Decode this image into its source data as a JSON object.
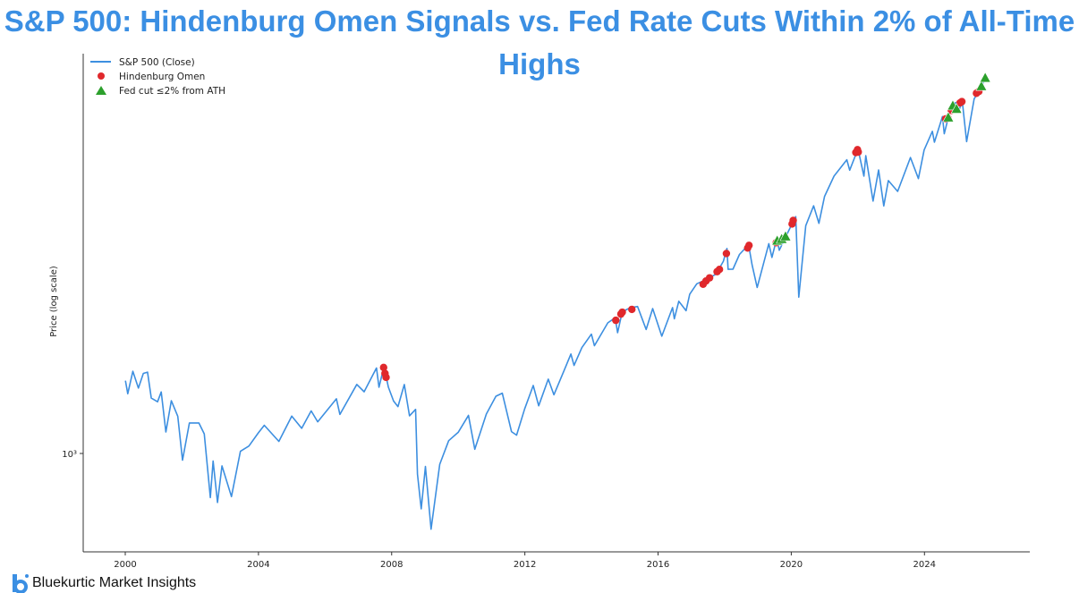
{
  "chart_data": {
    "type": "line",
    "title": "S&P 500: Hindenburg Omen Signals vs. Fed Rate Cuts Within 2% of All-Time Highs",
    "xlabel": "",
    "ylabel": "Price (log scale)",
    "yscale": "log",
    "ylim": [
      603,
      7840
    ],
    "xlim": [
      "1998-09-01",
      "2027-03-01"
    ],
    "xticks": [
      "2000",
      "2004",
      "2008",
      "2012",
      "2016",
      "2020",
      "2024"
    ],
    "yticks": [
      {
        "value": 1000,
        "label": "10³"
      }
    ],
    "grid": false,
    "legend_position": "top-left",
    "colors": {
      "line": "#3d8fe0",
      "omen": "#e0282c",
      "cut": "#2ca02c",
      "title": "#3b8fe3"
    },
    "series": [
      {
        "name": "S&P 500 (Close)",
        "kind": "line",
        "points": [
          [
            "2000-01-03",
            1455
          ],
          [
            "2000-01-28",
            1360
          ],
          [
            "2000-03-24",
            1527
          ],
          [
            "2000-05-24",
            1400
          ],
          [
            "2000-07-17",
            1510
          ],
          [
            "2000-09-01",
            1520
          ],
          [
            "2000-10-13",
            1330
          ],
          [
            "2000-12-20",
            1305
          ],
          [
            "2001-01-30",
            1373
          ],
          [
            "2001-03-22",
            1117
          ],
          [
            "2001-05-21",
            1312
          ],
          [
            "2001-07-31",
            1211
          ],
          [
            "2001-09-21",
            966
          ],
          [
            "2001-12-05",
            1170
          ],
          [
            "2002-03-19",
            1170
          ],
          [
            "2002-05-17",
            1106
          ],
          [
            "2002-07-23",
            797
          ],
          [
            "2002-08-22",
            962
          ],
          [
            "2002-10-09",
            777
          ],
          [
            "2002-11-27",
            938
          ],
          [
            "2003-03-11",
            801
          ],
          [
            "2003-06-17",
            1011
          ],
          [
            "2003-09-18",
            1039
          ],
          [
            "2003-12-31",
            1112
          ],
          [
            "2004-03-05",
            1156
          ],
          [
            "2004-08-12",
            1064
          ],
          [
            "2004-12-31",
            1212
          ],
          [
            "2005-04-20",
            1138
          ],
          [
            "2005-08-02",
            1245
          ],
          [
            "2005-10-13",
            1177
          ],
          [
            "2006-05-05",
            1325
          ],
          [
            "2006-06-13",
            1223
          ],
          [
            "2006-12-15",
            1427
          ],
          [
            "2007-03-05",
            1374
          ],
          [
            "2007-07-19",
            1553
          ],
          [
            "2007-08-15",
            1406
          ],
          [
            "2007-10-09",
            1565
          ],
          [
            "2007-11-26",
            1407
          ],
          [
            "2008-01-22",
            1310
          ],
          [
            "2008-03-10",
            1273
          ],
          [
            "2008-05-19",
            1426
          ],
          [
            "2008-07-15",
            1214
          ],
          [
            "2008-09-19",
            1255
          ],
          [
            "2008-10-10",
            899
          ],
          [
            "2008-11-20",
            752
          ],
          [
            "2009-01-06",
            935
          ],
          [
            "2009-03-09",
            677
          ],
          [
            "2009-06-12",
            946
          ],
          [
            "2009-09-18",
            1068
          ],
          [
            "2009-12-31",
            1115
          ],
          [
            "2010-04-23",
            1217
          ],
          [
            "2010-07-02",
            1022
          ],
          [
            "2010-11-05",
            1225
          ],
          [
            "2011-02-18",
            1343
          ],
          [
            "2011-04-29",
            1364
          ],
          [
            "2011-08-08",
            1119
          ],
          [
            "2011-10-03",
            1099
          ],
          [
            "2011-12-30",
            1258
          ],
          [
            "2012-04-02",
            1419
          ],
          [
            "2012-06-01",
            1278
          ],
          [
            "2012-09-14",
            1466
          ],
          [
            "2012-11-15",
            1353
          ],
          [
            "2013-03-28",
            1569
          ],
          [
            "2013-05-21",
            1669
          ],
          [
            "2013-06-24",
            1573
          ],
          [
            "2013-09-18",
            1725
          ],
          [
            "2013-12-31",
            1848
          ],
          [
            "2014-02-03",
            1742
          ],
          [
            "2014-06-30",
            1960
          ],
          [
            "2014-09-18",
            2011
          ],
          [
            "2014-10-15",
            1862
          ],
          [
            "2014-12-05",
            2075
          ],
          [
            "2015-03-02",
            2117
          ],
          [
            "2015-05-21",
            2131
          ],
          [
            "2015-08-24",
            1893
          ],
          [
            "2015-11-03",
            2109
          ],
          [
            "2016-02-11",
            1829
          ],
          [
            "2016-06-08",
            2119
          ],
          [
            "2016-06-27",
            2001
          ],
          [
            "2016-08-15",
            2190
          ],
          [
            "2016-11-03",
            2085
          ],
          [
            "2016-12-13",
            2271
          ],
          [
            "2017-03-01",
            2396
          ],
          [
            "2017-06-19",
            2453
          ],
          [
            "2017-09-29",
            2519
          ],
          [
            "2017-12-18",
            2690
          ],
          [
            "2018-01-26",
            2873
          ],
          [
            "2018-02-08",
            2581
          ],
          [
            "2018-04-02",
            2582
          ],
          [
            "2018-06-12",
            2786
          ],
          [
            "2018-09-20",
            2931
          ],
          [
            "2018-10-29",
            2641
          ],
          [
            "2018-12-24",
            2351
          ],
          [
            "2019-04-30",
            2946
          ],
          [
            "2019-06-03",
            2744
          ],
          [
            "2019-07-26",
            3025
          ],
          [
            "2019-08-23",
            2847
          ],
          [
            "2019-10-30",
            3046
          ],
          [
            "2019-12-31",
            3231
          ],
          [
            "2020-02-19",
            3386
          ],
          [
            "2020-03-23",
            2237
          ],
          [
            "2020-06-08",
            3232
          ],
          [
            "2020-09-02",
            3580
          ],
          [
            "2020-10-30",
            3270
          ],
          [
            "2020-12-31",
            3756
          ],
          [
            "2021-04-15",
            4170
          ],
          [
            "2021-09-02",
            4537
          ],
          [
            "2021-10-04",
            4300
          ],
          [
            "2022-01-03",
            4797
          ],
          [
            "2022-03-08",
            4171
          ],
          [
            "2022-03-29",
            4632
          ],
          [
            "2022-06-16",
            3667
          ],
          [
            "2022-08-16",
            4305
          ],
          [
            "2022-10-12",
            3577
          ],
          [
            "2022-12-01",
            4076
          ],
          [
            "2023-03-13",
            3855
          ],
          [
            "2023-07-31",
            4589
          ],
          [
            "2023-10-27",
            4117
          ],
          [
            "2023-12-29",
            4770
          ],
          [
            "2024-03-28",
            5254
          ],
          [
            "2024-04-19",
            4967
          ],
          [
            "2024-07-16",
            5667
          ],
          [
            "2024-08-05",
            5186
          ],
          [
            "2024-09-30",
            5762
          ],
          [
            "2024-12-06",
            6090
          ],
          [
            "2025-01-13",
            5836
          ],
          [
            "2025-02-19",
            6144
          ],
          [
            "2025-04-08",
            4982
          ],
          [
            "2025-06-30",
            6205
          ],
          [
            "2025-08-28",
            6502
          ],
          [
            "2025-10-28",
            6890
          ]
        ]
      },
      {
        "name": "Hindenburg Omen",
        "kind": "scatter",
        "marker": "circle",
        "points": [
          [
            "2007-10-05",
            1557
          ],
          [
            "2007-10-20",
            1510
          ],
          [
            "2007-11-01",
            1480
          ],
          [
            "2014-09-25",
            1985
          ],
          [
            "2014-11-20",
            2050
          ],
          [
            "2014-12-05",
            2070
          ],
          [
            "2015-03-20",
            2100
          ],
          [
            "2017-05-10",
            2390
          ],
          [
            "2017-06-10",
            2430
          ],
          [
            "2017-07-20",
            2470
          ],
          [
            "2017-10-10",
            2550
          ],
          [
            "2017-11-05",
            2580
          ],
          [
            "2018-01-20",
            2800
          ],
          [
            "2018-09-10",
            2880
          ],
          [
            "2018-09-25",
            2920
          ],
          [
            "2019-07-20",
            2960
          ],
          [
            "2020-01-10",
            3260
          ],
          [
            "2020-01-22",
            3320
          ],
          [
            "2021-12-10",
            4710
          ],
          [
            "2021-12-28",
            4780
          ],
          [
            "2022-01-05",
            4720
          ],
          [
            "2024-08-20",
            5600
          ],
          [
            "2024-09-15",
            5620
          ],
          [
            "2024-10-20",
            5850
          ],
          [
            "2025-01-25",
            6080
          ],
          [
            "2025-02-15",
            6120
          ],
          [
            "2025-07-25",
            6390
          ],
          [
            "2025-08-20",
            6450
          ]
        ]
      },
      {
        "name": "Fed cut ≤2% from ATH",
        "kind": "scatter",
        "marker": "triangle",
        "points": [
          [
            "2019-07-31",
            2980
          ],
          [
            "2019-09-18",
            3006
          ],
          [
            "2019-10-30",
            3046
          ],
          [
            "2024-09-18",
            5620
          ],
          [
            "2024-11-07",
            5973
          ],
          [
            "2024-12-18",
            5872
          ],
          [
            "2025-09-17",
            6600
          ],
          [
            "2025-10-29",
            6890
          ]
        ]
      }
    ]
  },
  "legend": [
    "S&P 500 (Close)",
    "Hindenburg Omen",
    "Fed cut ≤2% from ATH"
  ],
  "brand": {
    "name": "Bluekurtic Market Insights"
  }
}
